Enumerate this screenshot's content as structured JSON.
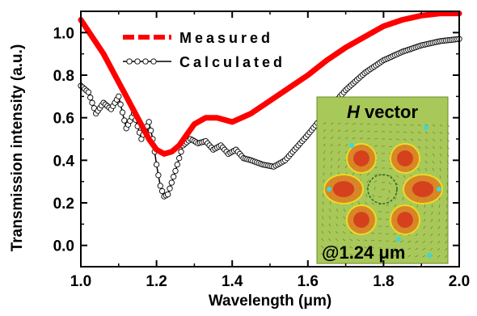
{
  "chart_data": {
    "type": "line",
    "xlabel": "Wavelength (μm)",
    "ylabel": "Transmission intensity (a.u.)",
    "xlim": [
      1.0,
      2.0
    ],
    "ylim": [
      -0.1,
      1.1
    ],
    "x_ticks": [
      "1.0",
      "1.2",
      "1.4",
      "1.6",
      "1.8",
      "2.0"
    ],
    "y_ticks": [
      "0.0",
      "0.2",
      "0.4",
      "0.6",
      "0.8",
      "1.0"
    ],
    "grid": false,
    "legend_position": "top-left",
    "series": [
      {
        "name": "Measured",
        "color": "#ff0000",
        "style": "thick dashed line",
        "x": [
          1.0,
          1.03,
          1.06,
          1.09,
          1.12,
          1.15,
          1.18,
          1.2,
          1.22,
          1.24,
          1.26,
          1.28,
          1.3,
          1.33,
          1.36,
          1.4,
          1.45,
          1.5,
          1.55,
          1.6,
          1.65,
          1.7,
          1.75,
          1.8,
          1.85,
          1.9,
          1.95,
          2.0
        ],
        "y": [
          1.06,
          0.98,
          0.9,
          0.8,
          0.7,
          0.6,
          0.5,
          0.45,
          0.43,
          0.44,
          0.47,
          0.52,
          0.57,
          0.6,
          0.6,
          0.58,
          0.62,
          0.68,
          0.74,
          0.8,
          0.87,
          0.93,
          0.98,
          1.03,
          1.06,
          1.08,
          1.09,
          1.09
        ]
      },
      {
        "name": "Calculated",
        "color": "#000000",
        "style": "line with open circle markers",
        "x": [
          1.0,
          1.02,
          1.04,
          1.06,
          1.08,
          1.1,
          1.12,
          1.14,
          1.16,
          1.18,
          1.19,
          1.2,
          1.21,
          1.22,
          1.23,
          1.25,
          1.27,
          1.29,
          1.31,
          1.33,
          1.35,
          1.37,
          1.39,
          1.41,
          1.43,
          1.45,
          1.48,
          1.51,
          1.54,
          1.57,
          1.6,
          1.65,
          1.7,
          1.75,
          1.8,
          1.85,
          1.9,
          1.95,
          2.0
        ],
        "y": [
          0.75,
          0.72,
          0.62,
          0.67,
          0.64,
          0.7,
          0.55,
          0.62,
          0.5,
          0.58,
          0.5,
          0.38,
          0.28,
          0.23,
          0.24,
          0.35,
          0.47,
          0.5,
          0.48,
          0.49,
          0.45,
          0.47,
          0.43,
          0.45,
          0.41,
          0.4,
          0.38,
          0.37,
          0.4,
          0.46,
          0.52,
          0.63,
          0.73,
          0.81,
          0.87,
          0.91,
          0.94,
          0.96,
          0.97
        ]
      }
    ],
    "inset": {
      "title_italic": "H",
      "title_rest": " vector",
      "annotation": "@1.24 μm",
      "background_color": "#a8c85a"
    }
  }
}
